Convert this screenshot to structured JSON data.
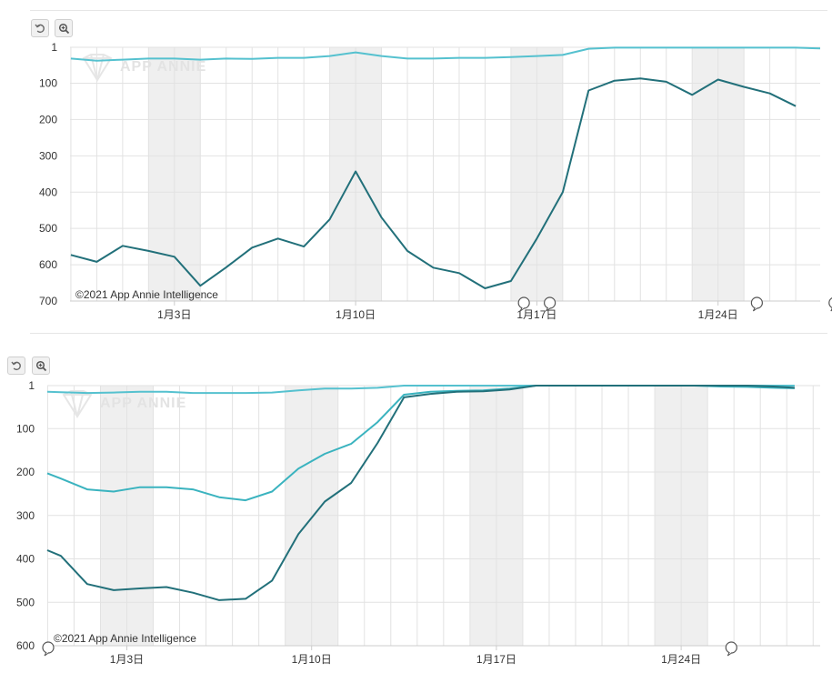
{
  "toolbar": {
    "reset_icon": "reset-icon",
    "zoom_icon": "zoom-icon"
  },
  "watermark": "APP ANNIE",
  "colors": {
    "light_series": "#55c1cf",
    "dark_series": "#22707a",
    "mid_series": "#3ab3bf",
    "weekend_band": "#efefef",
    "grid": "#e2e2e2"
  },
  "chart_data": [
    {
      "type": "line",
      "copyright": "©2021 App Annie Intelligence",
      "x_tick_labels": [
        "1月3日",
        "1月10日",
        "1月17日",
        "1月24日"
      ],
      "x_tick_days": [
        3,
        10,
        17,
        24
      ],
      "ylim": [
        700,
        1
      ],
      "y_inverted": true,
      "y_ticks": [
        1,
        100,
        200,
        300,
        400,
        500,
        600,
        700
      ],
      "y_tick_labels": [
        "1",
        "100",
        "200",
        "300",
        "400",
        "500",
        "600",
        "700"
      ],
      "grid": true,
      "weekend_bands": [
        [
          2,
          4
        ],
        [
          9,
          11
        ],
        [
          16,
          18
        ],
        [
          23,
          25
        ]
      ],
      "annotation_days": [
        16.5,
        17.5,
        25.5,
        28.5
      ],
      "x": [
        -1,
        0,
        1,
        2,
        3,
        4,
        5,
        6,
        7,
        8,
        9,
        10,
        11,
        12,
        13,
        14,
        15,
        16,
        17,
        18,
        19,
        20,
        21,
        22,
        23,
        24,
        25,
        26,
        27,
        28,
        28.5
      ],
      "series": [
        {
          "values": [
            32,
            38,
            35,
            32,
            32,
            35,
            32,
            33,
            30,
            30,
            25,
            15,
            25,
            32,
            32,
            30,
            30,
            28,
            25,
            22,
            5,
            2,
            2,
            2,
            2,
            2,
            2,
            2,
            2,
            4,
            null
          ]
        },
        {
          "values": [
            573,
            592,
            548,
            562,
            578,
            658,
            607,
            553,
            528,
            550,
            475,
            343,
            470,
            562,
            608,
            623,
            665,
            645,
            528,
            400,
            120,
            93,
            87,
            96,
            132,
            90,
            110,
            128,
            163,
            null,
            null
          ]
        }
      ]
    },
    {
      "type": "line",
      "copyright": "©2021 App Annie Intelligence",
      "x_tick_labels": [
        "1月3日",
        "1月10日",
        "1月17日",
        "1月24日"
      ],
      "x_tick_days": [
        3,
        10,
        17,
        24
      ],
      "ylim": [
        600,
        1
      ],
      "y_inverted": true,
      "y_ticks": [
        1,
        100,
        200,
        300,
        400,
        500,
        600
      ],
      "y_tick_labels": [
        "1",
        "100",
        "200",
        "300",
        "400",
        "500",
        "600"
      ],
      "grid": true,
      "weekend_bands": [
        [
          2,
          4
        ],
        [
          9,
          11
        ],
        [
          16,
          18
        ],
        [
          23,
          25
        ]
      ],
      "annotation_days": [
        -0.4,
        25.9
      ],
      "x": [
        -0.4,
        0.5,
        1.5,
        2.5,
        3.5,
        4.5,
        5.5,
        6.5,
        7.5,
        8.5,
        9.5,
        10.5,
        11.5,
        12.5,
        13.5,
        14.5,
        15.5,
        16.5,
        17.5,
        18.5,
        19.5,
        20.5,
        21.5,
        22.5,
        23.5,
        24.5,
        25.5,
        26.5,
        27.5,
        28.3
      ],
      "series": [
        {
          "values": [
            15,
            16,
            18,
            17,
            15,
            15,
            18,
            18,
            18,
            17,
            12,
            8,
            8,
            6,
            1,
            1,
            1,
            1,
            1,
            1,
            1,
            1,
            1,
            1,
            1,
            1,
            1,
            1,
            1,
            1
          ]
        },
        {
          "values": [
            203,
            215,
            240,
            245,
            235,
            235,
            240,
            258,
            265,
            245,
            192,
            158,
            135,
            85,
            22,
            15,
            13,
            12,
            8,
            1,
            1,
            1,
            1,
            1,
            1,
            1,
            3,
            4,
            6,
            7
          ]
        },
        {
          "values": [
            380,
            393,
            458,
            472,
            468,
            465,
            478,
            495,
            492,
            450,
            343,
            268,
            225,
            133,
            28,
            20,
            15,
            14,
            10,
            1,
            1,
            1,
            1,
            1,
            1,
            1,
            1,
            1,
            3,
            6
          ]
        }
      ]
    }
  ]
}
